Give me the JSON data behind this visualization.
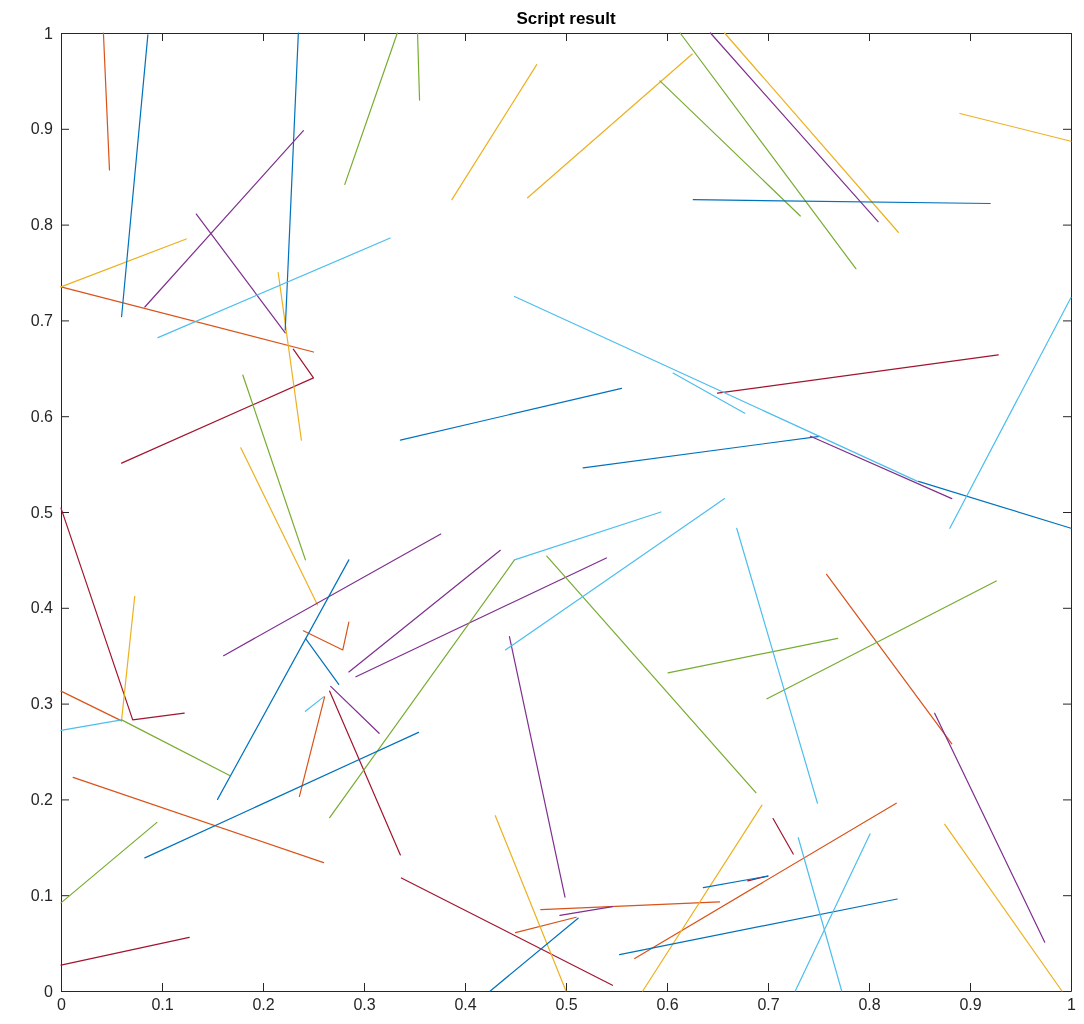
{
  "chart_data": {
    "type": "line",
    "title": "Script result",
    "xlim": [
      0,
      1
    ],
    "ylim": [
      0,
      1
    ],
    "xticks": [
      0,
      0.1,
      0.2,
      0.3,
      0.4,
      0.5,
      0.6,
      0.7,
      0.8,
      0.9,
      1
    ],
    "yticks": [
      0,
      0.1,
      0.2,
      0.3,
      0.4,
      0.5,
      0.6,
      0.7,
      0.8,
      0.9,
      1
    ],
    "series": [
      {
        "color": "#d95319",
        "x": [
          0.042,
          0.048
        ],
        "values": [
          1.0,
          0.857
        ]
      },
      {
        "color": "#d95319",
        "x": [
          0,
          0.25
        ],
        "values": [
          0.735,
          0.667
        ]
      },
      {
        "color": "#a2142f",
        "x": [
          0.06,
          0.25,
          0.23
        ],
        "values": [
          0.551,
          0.64,
          0.67
        ]
      },
      {
        "color": "#a2142f",
        "x": [
          0,
          0.071,
          0.122
        ],
        "values": [
          0.504,
          0.283,
          0.29
        ]
      },
      {
        "color": "#a2142f",
        "x": [
          0.266,
          0.336
        ],
        "values": [
          0.313,
          0.142
        ]
      },
      {
        "color": "#a2142f",
        "x": [
          0,
          0.127
        ],
        "values": [
          0.027,
          0.056
        ]
      },
      {
        "color": "#a2142f",
        "x": [
          0.337,
          0.546
        ],
        "values": [
          0.118,
          0.006
        ]
      },
      {
        "color": "#a2142f",
        "x": [
          0.65,
          0.928
        ],
        "values": [
          0.624,
          0.664
        ]
      },
      {
        "color": "#a2142f",
        "x": [
          0.705,
          0.725
        ],
        "values": [
          0.18,
          0.143
        ]
      },
      {
        "color": "#a2142f",
        "x": [
          0.68,
          0.7
        ],
        "values": [
          0.115,
          0.12
        ]
      },
      {
        "color": "#d95319",
        "x": [
          0,
          0.06
        ],
        "values": [
          0.313,
          0.282
        ]
      },
      {
        "color": "#d95319",
        "x": [
          0.012,
          0.26
        ],
        "values": [
          0.223,
          0.134
        ]
      },
      {
        "color": "#d95319",
        "x": [
          0.24,
          0.279,
          0.285
        ],
        "values": [
          0.376,
          0.356,
          0.385
        ]
      },
      {
        "color": "#d95319",
        "x": [
          0.236,
          0.261
        ],
        "values": [
          0.203,
          0.307
        ]
      },
      {
        "color": "#d95319",
        "x": [
          0.758,
          0.882
        ],
        "values": [
          0.435,
          0.258
        ]
      },
      {
        "color": "#d95319",
        "x": [
          0.45,
          0.51
        ],
        "values": [
          0.061,
          0.077
        ]
      },
      {
        "color": "#d95319",
        "x": [
          0.475,
          0.652
        ],
        "values": [
          0.085,
          0.093
        ]
      },
      {
        "color": "#d95319",
        "x": [
          0.568,
          0.827
        ],
        "values": [
          0.034,
          0.196
        ]
      },
      {
        "color": "#edb120",
        "x": [
          0,
          0.124
        ],
        "values": [
          0.735,
          0.785
        ]
      },
      {
        "color": "#edb120",
        "x": [
          0.215,
          0.238
        ],
        "values": [
          0.75,
          0.575
        ]
      },
      {
        "color": "#edb120",
        "x": [
          0.178,
          0.254
        ],
        "values": [
          0.567,
          0.403
        ]
      },
      {
        "color": "#edb120",
        "x": [
          0.06,
          0.073
        ],
        "values": [
          0.283,
          0.412
        ]
      },
      {
        "color": "#edb120",
        "x": [
          0.387,
          0.471
        ],
        "values": [
          0.826,
          0.967
        ]
      },
      {
        "color": "#edb120",
        "x": [
          0.462,
          0.625
        ],
        "values": [
          0.828,
          0.978
        ]
      },
      {
        "color": "#edb120",
        "x": [
          0.657,
          0.829
        ],
        "values": [
          1.0,
          0.792
        ]
      },
      {
        "color": "#edb120",
        "x": [
          0.89,
          1.0
        ],
        "values": [
          0.916,
          0.887
        ]
      },
      {
        "color": "#edb120",
        "x": [
          0.43,
          0.5
        ],
        "values": [
          0.183,
          0.0
        ]
      },
      {
        "color": "#edb120",
        "x": [
          0.576,
          0.694
        ],
        "values": [
          0.0,
          0.194
        ]
      },
      {
        "color": "#edb120",
        "x": [
          0.875,
          0.991
        ],
        "values": [
          0.174,
          0.0
        ]
      },
      {
        "color": "#7e2f8e",
        "x": [
          0.083,
          0.24
        ],
        "values": [
          0.714,
          0.898
        ]
      },
      {
        "color": "#7e2f8e",
        "x": [
          0.134,
          0.222
        ],
        "values": [
          0.811,
          0.687
        ]
      },
      {
        "color": "#7e2f8e",
        "x": [
          0.161,
          0.376
        ],
        "values": [
          0.35,
          0.477
        ]
      },
      {
        "color": "#7e2f8e",
        "x": [
          0.285,
          0.435
        ],
        "values": [
          0.333,
          0.46
        ]
      },
      {
        "color": "#7e2f8e",
        "x": [
          0.292,
          0.54
        ],
        "values": [
          0.328,
          0.452
        ]
      },
      {
        "color": "#7e2f8e",
        "x": [
          0.267,
          0.315
        ],
        "values": [
          0.318,
          0.269
        ]
      },
      {
        "color": "#7e2f8e",
        "x": [
          0.643,
          0.809
        ],
        "values": [
          1.0,
          0.803
        ]
      },
      {
        "color": "#7e2f8e",
        "x": [
          0.742,
          0.882
        ],
        "values": [
          0.579,
          0.514
        ]
      },
      {
        "color": "#7e2f8e",
        "x": [
          0.444,
          0.499
        ],
        "values": [
          0.37,
          0.098
        ]
      },
      {
        "color": "#7e2f8e",
        "x": [
          0.865,
          0.974
        ],
        "values": [
          0.29,
          0.051
        ]
      },
      {
        "color": "#7e2f8e",
        "x": [
          0.494,
          0.546
        ],
        "values": [
          0.079,
          0.088
        ]
      },
      {
        "color": "#77ac30",
        "x": [
          0.281,
          0.333
        ],
        "values": [
          0.842,
          1.0
        ]
      },
      {
        "color": "#77ac30",
        "x": [
          0.353,
          0.355
        ],
        "values": [
          1.0,
          0.93
        ]
      },
      {
        "color": "#77ac30",
        "x": [
          0.593,
          0.732
        ],
        "values": [
          0.95,
          0.809
        ]
      },
      {
        "color": "#77ac30",
        "x": [
          0.613,
          0.787
        ],
        "values": [
          1.0,
          0.754
        ]
      },
      {
        "color": "#77ac30",
        "x": [
          0.18,
          0.242
        ],
        "values": [
          0.643,
          0.45
        ]
      },
      {
        "color": "#77ac30",
        "x": [
          0,
          0.095
        ],
        "values": [
          0.092,
          0.176
        ]
      },
      {
        "color": "#77ac30",
        "x": [
          0.06,
          0.167
        ],
        "values": [
          0.283,
          0.225
        ]
      },
      {
        "color": "#77ac30",
        "x": [
          0.266,
          0.449
        ],
        "values": [
          0.181,
          0.45
        ]
      },
      {
        "color": "#77ac30",
        "x": [
          0.481,
          0.688
        ],
        "values": [
          0.454,
          0.207
        ]
      },
      {
        "color": "#77ac30",
        "x": [
          0.601,
          0.769
        ],
        "values": [
          0.332,
          0.368
        ]
      },
      {
        "color": "#77ac30",
        "x": [
          0.699,
          0.926
        ],
        "values": [
          0.305,
          0.428
        ]
      },
      {
        "color": "#0072bd",
        "x": [
          0.06,
          0.086
        ],
        "values": [
          0.704,
          0.998
        ]
      },
      {
        "color": "#0072bd",
        "x": [
          0.222,
          0.235
        ],
        "values": [
          0.69,
          1.0
        ]
      },
      {
        "color": "#0072bd",
        "x": [
          0.626,
          0.92
        ],
        "values": [
          0.826,
          0.822
        ]
      },
      {
        "color": "#0072bd",
        "x": [
          0.336,
          0.555
        ],
        "values": [
          0.575,
          0.629
        ]
      },
      {
        "color": "#0072bd",
        "x": [
          0.517,
          0.751
        ],
        "values": [
          0.546,
          0.579
        ]
      },
      {
        "color": "#0072bd",
        "x": [
          0.849,
          1.0
        ],
        "values": [
          0.532,
          0.483
        ]
      },
      {
        "color": "#0072bd",
        "x": [
          0.155,
          0.285
        ],
        "values": [
          0.2,
          0.45
        ]
      },
      {
        "color": "#0072bd",
        "x": [
          0.083,
          0.354
        ],
        "values": [
          0.139,
          0.27
        ]
      },
      {
        "color": "#0072bd",
        "x": [
          0.242,
          0.275
        ],
        "values": [
          0.368,
          0.32
        ]
      },
      {
        "color": "#0072bd",
        "x": [
          0.425,
          0.512
        ],
        "values": [
          0.0,
          0.076
        ]
      },
      {
        "color": "#0072bd",
        "x": [
          0.553,
          0.828
        ],
        "values": [
          0.038,
          0.096
        ]
      },
      {
        "color": "#0072bd",
        "x": [
          0.636,
          0.7
        ],
        "values": [
          0.108,
          0.12
        ]
      },
      {
        "color": "#4dbeee",
        "x": [
          0.096,
          0.326
        ],
        "values": [
          0.682,
          0.786
        ]
      },
      {
        "color": "#4dbeee",
        "x": [
          0.449,
          0.848
        ],
        "values": [
          0.725,
          0.532
        ]
      },
      {
        "color": "#4dbeee",
        "x": [
          0.606,
          0.677
        ],
        "values": [
          0.645,
          0.603
        ]
      },
      {
        "color": "#4dbeee",
        "x": [
          0.88,
          1.0
        ],
        "values": [
          0.483,
          0.724
        ]
      },
      {
        "color": "#4dbeee",
        "x": [
          0.44,
          0.657
        ],
        "values": [
          0.356,
          0.514
        ]
      },
      {
        "color": "#4dbeee",
        "x": [
          0.449,
          0.594
        ],
        "values": [
          0.45,
          0.5
        ]
      },
      {
        "color": "#4dbeee",
        "x": [
          0,
          0.06
        ],
        "values": [
          0.272,
          0.283
        ]
      },
      {
        "color": "#4dbeee",
        "x": [
          0.669,
          0.749
        ],
        "values": [
          0.483,
          0.196
        ]
      },
      {
        "color": "#4dbeee",
        "x": [
          0.727,
          0.801
        ],
        "values": [
          0.0,
          0.164
        ]
      },
      {
        "color": "#4dbeee",
        "x": [
          0.73,
          0.773
        ],
        "values": [
          0.16,
          0.0
        ]
      },
      {
        "color": "#4dbeee",
        "x": [
          0.242,
          0.26
        ],
        "values": [
          0.292,
          0.307
        ]
      }
    ]
  }
}
